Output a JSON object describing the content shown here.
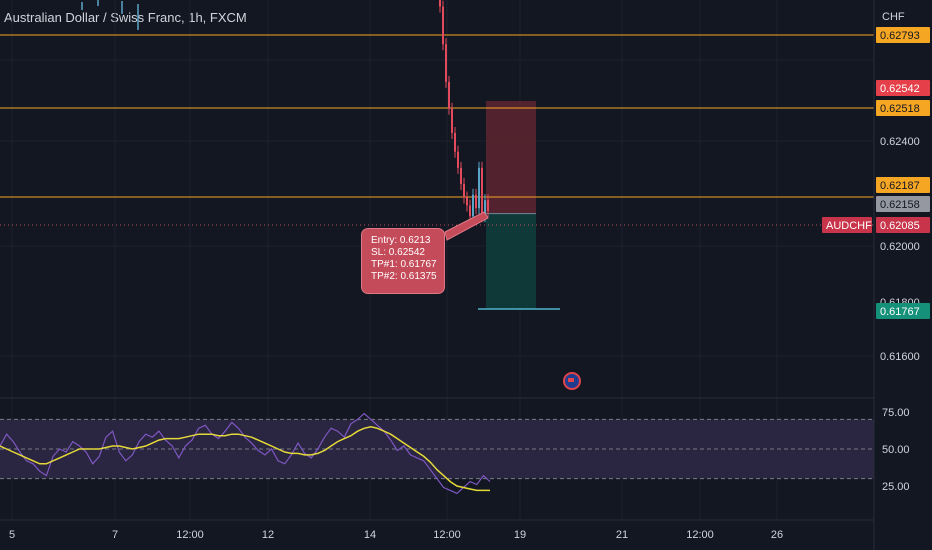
{
  "header": {
    "title": "Australian Dollar / Swiss Franc, 1h, FXCM"
  },
  "axis": {
    "currency": "CHF",
    "price_ticks": [
      "0.62400",
      "0.62000",
      "0.61800",
      "0.61600"
    ],
    "rsi_ticks": [
      "75.00",
      "50.00",
      "25.00"
    ],
    "time_ticks": [
      "5",
      "7",
      "12:00",
      "12",
      "14",
      "12:00",
      "19",
      "21",
      "12:00",
      "26"
    ]
  },
  "levels": {
    "resistance_1": "0.62793",
    "stop_loss": "0.62542",
    "resistance_2": "0.62518",
    "support": "0.62187",
    "current_grey": "0.62158",
    "symbol": "AUDCHF",
    "last_price": "0.62085",
    "take_profit": "0.61767"
  },
  "trade_note": {
    "entry": "Entry: 0.6213",
    "sl": "SL: 0.62542",
    "tp1": "TP#1: 0.61767",
    "tp2": "TP#2: 0.61375"
  },
  "colors": {
    "background": "#131722",
    "level_line": "#f5a623",
    "stop_zone": "#5a2530",
    "target_zone": "#0f3c3c",
    "candle_up": "#5aa6c8",
    "candle_down": "#e34a5c",
    "rsi_line": "#7e57c2",
    "rsi_ma": "#e5d93a"
  },
  "chart_data": {
    "type": "line",
    "title": "Australian Dollar / Swiss Franc, 1h, FXCM",
    "price_series": {
      "name": "AUDCHF",
      "values": [
        0.6298,
        0.629,
        0.6276,
        0.6262,
        0.6252,
        0.6243,
        0.6236,
        0.623,
        0.6224,
        0.6219,
        0.6216,
        0.6212,
        0.622,
        0.6215,
        0.623,
        0.6212,
        0.6218,
        0.6214
      ]
    },
    "rsi": {
      "ylim": [
        0,
        100
      ],
      "values": [
        52,
        60,
        55,
        48,
        42,
        40,
        35,
        32,
        45,
        50,
        48,
        55,
        52,
        48,
        40,
        45,
        58,
        62,
        48,
        42,
        46,
        55,
        60,
        58,
        62,
        56,
        52,
        44,
        52,
        56,
        64,
        66,
        60,
        57,
        62,
        68,
        64,
        58,
        54,
        49,
        46,
        50,
        42,
        40,
        46,
        54,
        47,
        44,
        50,
        58,
        64,
        62,
        58,
        67,
        70,
        74,
        70,
        66,
        62,
        56,
        49,
        52,
        46,
        44,
        42,
        36,
        30,
        24,
        22,
        20,
        24,
        28,
        26,
        32,
        28
      ],
      "ma": [
        52,
        50,
        48,
        46,
        44,
        42,
        40,
        40,
        42,
        44,
        46,
        48,
        50,
        50,
        50,
        50,
        51,
        52,
        52,
        51,
        50,
        51,
        52,
        54,
        56,
        57,
        57,
        57,
        58,
        59,
        60,
        60,
        60,
        59,
        59,
        60,
        60,
        59,
        58,
        56,
        54,
        52,
        50,
        48,
        47,
        47,
        46,
        46,
        47,
        49,
        52,
        55,
        57,
        59,
        62,
        64,
        65,
        64,
        62,
        60,
        57,
        54,
        51,
        48,
        45,
        41,
        36,
        32,
        28,
        25,
        24,
        23,
        22,
        22,
        22
      ]
    }
  }
}
